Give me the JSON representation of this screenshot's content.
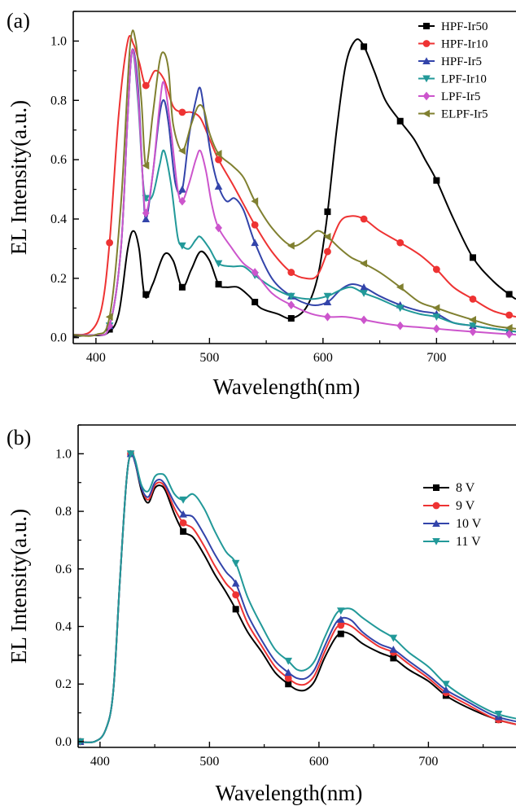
{
  "chart_data": [
    {
      "type": "line",
      "panel_label": "(a)",
      "xlabel": "Wavelength(nm)",
      "ylabel": "EL Intensity(a.u.)",
      "xlim": [
        380,
        770
      ],
      "ylim": [
        -0.02,
        1.1
      ],
      "xticks": [
        400,
        500,
        600,
        700
      ],
      "yticks": [
        0.0,
        0.2,
        0.4,
        0.6,
        0.8,
        1.0
      ],
      "ytick_labels": [
        "0.0",
        "0.2",
        "0.4",
        "0.6",
        "0.8",
        "1.0"
      ],
      "legend_position": "top-right",
      "series": [
        {
          "name": "HPF-Ir50",
          "color": "#000000",
          "marker": "square",
          "x": [
            380,
            395,
            410,
            420,
            428,
            433,
            438,
            443,
            450,
            460,
            468,
            476,
            484,
            492,
            500,
            508,
            515,
            525,
            535,
            545,
            560,
            572,
            585,
            595,
            603,
            612,
            620,
            628,
            635,
            645,
            655,
            668,
            680,
            690,
            700,
            715,
            732,
            750,
            766,
            770
          ],
          "y": [
            0.005,
            0.008,
            0.015,
            0.08,
            0.3,
            0.36,
            0.3,
            0.14,
            0.18,
            0.28,
            0.26,
            0.17,
            0.23,
            0.29,
            0.26,
            0.18,
            0.17,
            0.17,
            0.14,
            0.1,
            0.08,
            0.065,
            0.1,
            0.2,
            0.39,
            0.7,
            0.92,
            1.0,
            0.99,
            0.9,
            0.8,
            0.73,
            0.67,
            0.6,
            0.53,
            0.4,
            0.27,
            0.19,
            0.14,
            0.13
          ],
          "marker_x": [
            412,
            444,
            476,
            508,
            540,
            572,
            604,
            636,
            668,
            700,
            732,
            764
          ]
        },
        {
          "name": "HPF-Ir10",
          "color": "#ee3333",
          "marker": "circle",
          "x": [
            380,
            395,
            405,
            412,
            420,
            428,
            433,
            438,
            444,
            452,
            460,
            468,
            476,
            484,
            492,
            500,
            508,
            520,
            530,
            540,
            555,
            572,
            585,
            595,
            604,
            615,
            625,
            636,
            650,
            668,
            685,
            700,
            715,
            732,
            750,
            770
          ],
          "y": [
            0.01,
            0.02,
            0.1,
            0.32,
            0.75,
            1.0,
            0.99,
            0.93,
            0.85,
            0.9,
            0.87,
            0.78,
            0.76,
            0.76,
            0.74,
            0.67,
            0.6,
            0.52,
            0.45,
            0.38,
            0.29,
            0.22,
            0.2,
            0.21,
            0.29,
            0.39,
            0.41,
            0.4,
            0.36,
            0.32,
            0.28,
            0.23,
            0.17,
            0.13,
            0.09,
            0.07
          ],
          "marker_x": [
            412,
            444,
            476,
            508,
            540,
            572,
            604,
            636,
            668,
            700,
            732,
            764
          ]
        },
        {
          "name": "HPF-Ir5",
          "color": "#3344aa",
          "marker": "triangle-up",
          "x": [
            380,
            400,
            412,
            422,
            428,
            432,
            437,
            441,
            444,
            450,
            456,
            460,
            464,
            470,
            476,
            482,
            488,
            492,
            497,
            502,
            508,
            515,
            522,
            530,
            540,
            555,
            572,
            590,
            604,
            615,
            625,
            636,
            650,
            668,
            685,
            700,
            715,
            732,
            750,
            770
          ],
          "y": [
            0.01,
            0.01,
            0.04,
            0.3,
            0.75,
            0.97,
            0.85,
            0.55,
            0.4,
            0.55,
            0.75,
            0.8,
            0.72,
            0.52,
            0.5,
            0.68,
            0.8,
            0.84,
            0.72,
            0.6,
            0.51,
            0.46,
            0.47,
            0.43,
            0.32,
            0.2,
            0.14,
            0.11,
            0.12,
            0.16,
            0.18,
            0.17,
            0.14,
            0.11,
            0.09,
            0.08,
            0.05,
            0.04,
            0.03,
            0.02
          ],
          "marker_x": [
            412,
            444,
            476,
            508,
            540,
            572,
            604,
            636,
            668,
            700,
            732,
            764
          ]
        },
        {
          "name": "LPF-Ir10",
          "color": "#229999",
          "marker": "triangle-down",
          "x": [
            380,
            400,
            412,
            422,
            428,
            432,
            437,
            441,
            444,
            450,
            456,
            460,
            466,
            472,
            476,
            482,
            488,
            492,
            500,
            508,
            520,
            530,
            540,
            555,
            572,
            590,
            604,
            615,
            625,
            636,
            650,
            668,
            685,
            700,
            715,
            732,
            750,
            770
          ],
          "y": [
            0.01,
            0.01,
            0.04,
            0.3,
            0.75,
            0.97,
            0.8,
            0.55,
            0.47,
            0.48,
            0.58,
            0.63,
            0.52,
            0.34,
            0.31,
            0.3,
            0.33,
            0.34,
            0.3,
            0.25,
            0.24,
            0.24,
            0.21,
            0.17,
            0.14,
            0.13,
            0.14,
            0.16,
            0.17,
            0.15,
            0.13,
            0.1,
            0.08,
            0.07,
            0.05,
            0.04,
            0.03,
            0.02
          ],
          "marker_x": [
            412,
            444,
            476,
            508,
            540,
            572,
            604,
            636,
            668,
            700,
            732,
            764
          ]
        },
        {
          "name": "LPF-Ir5",
          "color": "#cc55cc",
          "marker": "diamond",
          "x": [
            380,
            400,
            412,
            422,
            428,
            432,
            437,
            441,
            444,
            450,
            456,
            460,
            466,
            472,
            476,
            482,
            488,
            492,
            497,
            502,
            508,
            520,
            530,
            540,
            555,
            572,
            590,
            604,
            620,
            636,
            650,
            668,
            685,
            700,
            715,
            732,
            750,
            770
          ],
          "y": [
            0.01,
            0.01,
            0.04,
            0.3,
            0.75,
            0.97,
            0.82,
            0.55,
            0.42,
            0.55,
            0.78,
            0.86,
            0.7,
            0.5,
            0.46,
            0.52,
            0.6,
            0.63,
            0.56,
            0.45,
            0.37,
            0.3,
            0.25,
            0.22,
            0.15,
            0.11,
            0.08,
            0.07,
            0.07,
            0.06,
            0.05,
            0.04,
            0.035,
            0.03,
            0.025,
            0.02,
            0.015,
            0.01
          ],
          "marker_x": [
            412,
            444,
            476,
            508,
            540,
            572,
            604,
            636,
            668,
            700,
            732,
            764
          ]
        },
        {
          "name": "ELPF-Ir5",
          "color": "#808030",
          "marker": "triangle-left",
          "x": [
            380,
            400,
            412,
            422,
            430,
            435,
            440,
            444,
            450,
            456,
            460,
            464,
            468,
            476,
            484,
            490,
            495,
            500,
            508,
            520,
            530,
            540,
            555,
            572,
            585,
            595,
            604,
            615,
            625,
            636,
            650,
            668,
            685,
            700,
            715,
            732,
            750,
            770
          ],
          "y": [
            0.01,
            0.01,
            0.07,
            0.45,
            0.98,
            1.0,
            0.8,
            0.58,
            0.75,
            0.93,
            0.96,
            0.9,
            0.72,
            0.63,
            0.72,
            0.78,
            0.77,
            0.69,
            0.62,
            0.58,
            0.54,
            0.46,
            0.37,
            0.31,
            0.33,
            0.36,
            0.34,
            0.3,
            0.27,
            0.25,
            0.22,
            0.17,
            0.12,
            0.1,
            0.08,
            0.06,
            0.04,
            0.03
          ],
          "marker_x": [
            412,
            444,
            476,
            508,
            540,
            572,
            604,
            636,
            668,
            700,
            732,
            764
          ]
        }
      ]
    },
    {
      "type": "line",
      "panel_label": "(b)",
      "xlabel": "Wavelength(nm)",
      "ylabel": "EL Intensity(a.u.)",
      "xlim": [
        380,
        780
      ],
      "ylim": [
        -0.02,
        1.1
      ],
      "xticks": [
        400,
        500,
        600,
        700
      ],
      "yticks": [
        0.0,
        0.2,
        0.4,
        0.6,
        0.8,
        1.0
      ],
      "ytick_labels": [
        "0.0",
        "0.2",
        "0.4",
        "0.6",
        "0.8",
        "1.0"
      ],
      "legend_position": "top-right",
      "series": [
        {
          "name": "8 V",
          "color": "#000000",
          "marker": "square",
          "x": [
            380,
            395,
            405,
            412,
            418,
            424,
            428,
            432,
            438,
            444,
            450,
            455,
            460,
            468,
            476,
            485,
            495,
            505,
            515,
            524,
            535,
            548,
            560,
            572,
            580,
            588,
            596,
            605,
            615,
            622,
            630,
            640,
            655,
            668,
            682,
            700,
            716,
            735,
            760,
            780
          ],
          "y": [
            0.0,
            0.0,
            0.04,
            0.17,
            0.55,
            0.9,
            1.0,
            0.97,
            0.87,
            0.83,
            0.88,
            0.89,
            0.87,
            0.79,
            0.73,
            0.71,
            0.65,
            0.58,
            0.52,
            0.46,
            0.38,
            0.31,
            0.24,
            0.2,
            0.18,
            0.18,
            0.21,
            0.29,
            0.36,
            0.38,
            0.37,
            0.34,
            0.31,
            0.29,
            0.25,
            0.21,
            0.16,
            0.12,
            0.08,
            0.06
          ],
          "marker_x": [
            382,
            428,
            476,
            524,
            572,
            620,
            668,
            716,
            764
          ]
        },
        {
          "name": "9 V",
          "color": "#ee3333",
          "marker": "circle",
          "x": [
            380,
            395,
            405,
            412,
            418,
            424,
            428,
            432,
            438,
            444,
            450,
            455,
            460,
            468,
            476,
            485,
            495,
            505,
            515,
            524,
            535,
            548,
            560,
            572,
            580,
            588,
            596,
            605,
            615,
            622,
            630,
            640,
            655,
            668,
            682,
            700,
            716,
            735,
            760,
            780
          ],
          "y": [
            0.0,
            0.0,
            0.04,
            0.17,
            0.55,
            0.9,
            1.0,
            0.97,
            0.88,
            0.84,
            0.89,
            0.9,
            0.88,
            0.81,
            0.76,
            0.74,
            0.68,
            0.61,
            0.55,
            0.51,
            0.41,
            0.33,
            0.26,
            0.22,
            0.2,
            0.2,
            0.23,
            0.31,
            0.39,
            0.41,
            0.4,
            0.37,
            0.33,
            0.31,
            0.27,
            0.22,
            0.17,
            0.13,
            0.08,
            0.06
          ],
          "marker_x": [
            382,
            428,
            476,
            524,
            572,
            620,
            668,
            716,
            764
          ]
        },
        {
          "name": "10 V",
          "color": "#3344aa",
          "marker": "triangle-up",
          "x": [
            380,
            395,
            405,
            412,
            418,
            424,
            428,
            432,
            438,
            444,
            450,
            455,
            460,
            468,
            476,
            485,
            495,
            505,
            515,
            524,
            535,
            548,
            560,
            572,
            580,
            588,
            596,
            605,
            615,
            622,
            630,
            640,
            655,
            668,
            682,
            700,
            716,
            735,
            760,
            780
          ],
          "y": [
            0.0,
            0.0,
            0.04,
            0.17,
            0.55,
            0.9,
            1.0,
            0.97,
            0.88,
            0.85,
            0.9,
            0.91,
            0.89,
            0.83,
            0.79,
            0.78,
            0.72,
            0.65,
            0.59,
            0.55,
            0.44,
            0.35,
            0.28,
            0.24,
            0.22,
            0.22,
            0.25,
            0.33,
            0.41,
            0.43,
            0.42,
            0.38,
            0.34,
            0.32,
            0.28,
            0.23,
            0.18,
            0.14,
            0.09,
            0.07
          ],
          "marker_x": [
            382,
            428,
            476,
            524,
            572,
            620,
            668,
            716,
            764
          ]
        },
        {
          "name": "11 V",
          "color": "#229999",
          "marker": "triangle-down",
          "x": [
            380,
            395,
            405,
            412,
            418,
            424,
            428,
            432,
            438,
            444,
            450,
            455,
            460,
            468,
            476,
            485,
            495,
            505,
            515,
            524,
            535,
            548,
            560,
            572,
            580,
            588,
            596,
            605,
            615,
            622,
            630,
            640,
            655,
            668,
            682,
            700,
            716,
            735,
            760,
            780
          ],
          "y": [
            0.0,
            0.0,
            0.04,
            0.17,
            0.55,
            0.9,
            1.0,
            0.98,
            0.89,
            0.87,
            0.92,
            0.93,
            0.92,
            0.86,
            0.84,
            0.86,
            0.81,
            0.73,
            0.66,
            0.62,
            0.5,
            0.4,
            0.32,
            0.28,
            0.25,
            0.25,
            0.28,
            0.36,
            0.44,
            0.46,
            0.46,
            0.43,
            0.39,
            0.36,
            0.31,
            0.26,
            0.2,
            0.15,
            0.1,
            0.08
          ],
          "marker_x": [
            382,
            428,
            476,
            524,
            572,
            620,
            668,
            716,
            764
          ]
        }
      ]
    }
  ]
}
